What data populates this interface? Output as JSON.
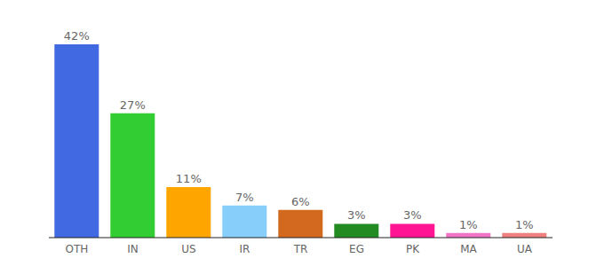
{
  "chart_data": {
    "type": "bar",
    "categories": [
      "OTH",
      "IN",
      "US",
      "IR",
      "TR",
      "EG",
      "PK",
      "MA",
      "UA"
    ],
    "values": [
      42,
      27,
      11,
      7,
      6,
      3,
      3,
      1,
      1
    ],
    "value_labels": [
      "42%",
      "27%",
      "11%",
      "7%",
      "6%",
      "3%",
      "3%",
      "1%",
      "1%"
    ],
    "colors": [
      "#4169e1",
      "#32cd32",
      "#ffa500",
      "#87cefa",
      "#d2691e",
      "#228b22",
      "#ff1493",
      "#f075c6",
      "#f08080"
    ],
    "data_labels": true,
    "tick_labels": "x"
  }
}
